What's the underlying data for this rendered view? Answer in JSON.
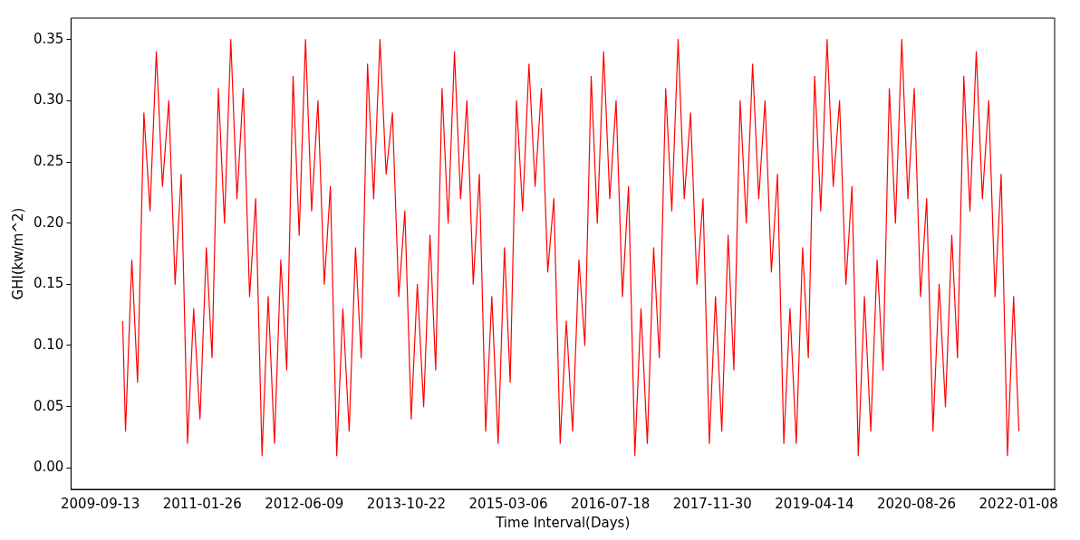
{
  "chart_data": {
    "type": "line",
    "xlabel": "Time Interval(Days)",
    "ylabel": "GHI(kw/m^2)",
    "x": [
      "2010-01-01",
      "2010-01-15",
      "2010-02-15",
      "2010-03-15",
      "2010-04-15",
      "2010-05-15",
      "2010-06-15",
      "2010-07-15",
      "2010-08-15",
      "2010-09-15",
      "2010-10-15",
      "2010-11-15",
      "2010-12-15",
      "2011-01-15",
      "2011-02-15",
      "2011-03-15",
      "2011-04-15",
      "2011-05-15",
      "2011-06-15",
      "2011-07-15",
      "2011-08-15",
      "2011-09-15",
      "2011-10-15",
      "2011-11-15",
      "2011-12-15",
      "2012-01-15",
      "2012-02-15",
      "2012-03-15",
      "2012-04-15",
      "2012-05-15",
      "2012-06-15",
      "2012-07-15",
      "2012-08-15",
      "2012-09-15",
      "2012-10-15",
      "2012-11-15",
      "2012-12-15",
      "2013-01-15",
      "2013-02-15",
      "2013-03-15",
      "2013-04-15",
      "2013-05-15",
      "2013-06-15",
      "2013-07-15",
      "2013-08-15",
      "2013-09-15",
      "2013-10-15",
      "2013-11-15",
      "2013-12-15",
      "2014-01-15",
      "2014-02-15",
      "2014-03-15",
      "2014-04-15",
      "2014-05-15",
      "2014-06-15",
      "2014-07-15",
      "2014-08-15",
      "2014-09-15",
      "2014-10-15",
      "2014-11-15",
      "2014-12-15",
      "2015-01-15",
      "2015-02-15",
      "2015-03-15",
      "2015-04-15",
      "2015-05-15",
      "2015-06-15",
      "2015-07-15",
      "2015-08-15",
      "2015-09-15",
      "2015-10-15",
      "2015-11-15",
      "2015-12-15",
      "2016-01-15",
      "2016-02-15",
      "2016-03-15",
      "2016-04-15",
      "2016-05-15",
      "2016-06-15",
      "2016-07-15",
      "2016-08-15",
      "2016-09-15",
      "2016-10-15",
      "2016-11-15",
      "2016-12-15",
      "2017-01-15",
      "2017-02-15",
      "2017-03-15",
      "2017-04-15",
      "2017-05-15",
      "2017-06-15",
      "2017-07-15",
      "2017-08-15",
      "2017-09-15",
      "2017-10-15",
      "2017-11-15",
      "2017-12-15",
      "2018-01-15",
      "2018-02-15",
      "2018-03-15",
      "2018-04-15",
      "2018-05-15",
      "2018-06-15",
      "2018-07-15",
      "2018-08-15",
      "2018-09-15",
      "2018-10-15",
      "2018-11-15",
      "2018-12-15",
      "2019-01-15",
      "2019-02-15",
      "2019-03-15",
      "2019-04-15",
      "2019-05-15",
      "2019-06-15",
      "2019-07-15",
      "2019-08-15",
      "2019-09-15",
      "2019-10-15",
      "2019-11-15",
      "2019-12-15",
      "2020-01-15",
      "2020-02-15",
      "2020-03-15",
      "2020-04-15",
      "2020-05-15",
      "2020-06-15",
      "2020-07-15",
      "2020-08-15",
      "2020-09-15",
      "2020-10-15",
      "2020-11-15",
      "2020-12-15",
      "2021-01-15",
      "2021-02-15",
      "2021-03-15",
      "2021-04-15",
      "2021-05-15",
      "2021-06-15",
      "2021-07-15",
      "2021-08-15",
      "2021-09-15",
      "2021-10-15",
      "2021-11-15",
      "2021-12-15",
      "2022-01-10"
    ],
    "series": [
      {
        "color": "#ff0000",
        "values": [
          0.12,
          0.03,
          0.17,
          0.07,
          0.29,
          0.21,
          0.34,
          0.23,
          0.3,
          0.15,
          0.24,
          0.02,
          0.13,
          0.04,
          0.18,
          0.09,
          0.31,
          0.2,
          0.35,
          0.22,
          0.31,
          0.14,
          0.22,
          0.01,
          0.14,
          0.02,
          0.17,
          0.08,
          0.32,
          0.19,
          0.35,
          0.21,
          0.3,
          0.15,
          0.23,
          0.01,
          0.13,
          0.03,
          0.18,
          0.09,
          0.33,
          0.22,
          0.35,
          0.24,
          0.29,
          0.14,
          0.21,
          0.04,
          0.15,
          0.05,
          0.19,
          0.08,
          0.31,
          0.2,
          0.34,
          0.22,
          0.3,
          0.15,
          0.24,
          0.03,
          0.14,
          0.02,
          0.18,
          0.07,
          0.3,
          0.21,
          0.33,
          0.23,
          0.31,
          0.16,
          0.22,
          0.02,
          0.12,
          0.03,
          0.17,
          0.1,
          0.32,
          0.2,
          0.34,
          0.22,
          0.3,
          0.14,
          0.23,
          0.01,
          0.13,
          0.02,
          0.18,
          0.09,
          0.31,
          0.21,
          0.35,
          0.22,
          0.29,
          0.15,
          0.22,
          0.02,
          0.14,
          0.03,
          0.19,
          0.08,
          0.3,
          0.2,
          0.33,
          0.22,
          0.3,
          0.16,
          0.24,
          0.02,
          0.13,
          0.02,
          0.18,
          0.09,
          0.32,
          0.21,
          0.35,
          0.23,
          0.3,
          0.15,
          0.23,
          0.01,
          0.14,
          0.03,
          0.17,
          0.08,
          0.31,
          0.2,
          0.35,
          0.22,
          0.31,
          0.14,
          0.22,
          0.03,
          0.15,
          0.05,
          0.19,
          0.09,
          0.32,
          0.21,
          0.34,
          0.22,
          0.3,
          0.14,
          0.24,
          0.01,
          0.14,
          0.03
        ]
      }
    ],
    "xlim": [
      "2009-04-23",
      "2022-07-04"
    ],
    "xticks": [
      "2009-09-13",
      "2011-01-26",
      "2012-06-09",
      "2013-10-22",
      "2015-03-06",
      "2016-07-18",
      "2017-11-30",
      "2019-04-14",
      "2020-08-26",
      "2022-01-08"
    ],
    "ylim": [
      -0.0175,
      0.3675
    ],
    "yticks": [
      {
        "value": 0,
        "label": "0.00"
      },
      {
        "value": 0.05,
        "label": "0.05"
      },
      {
        "value": 0.1,
        "label": "0.10"
      },
      {
        "value": 0.15,
        "label": "0.15"
      },
      {
        "value": 0.2,
        "label": "0.20"
      },
      {
        "value": 0.25,
        "label": "0.25"
      },
      {
        "value": 0.3,
        "label": "0.30"
      },
      {
        "value": 0.35,
        "label": "0.35"
      }
    ],
    "marker": "none",
    "line_style": "solid",
    "grid": false,
    "legend": false
  }
}
